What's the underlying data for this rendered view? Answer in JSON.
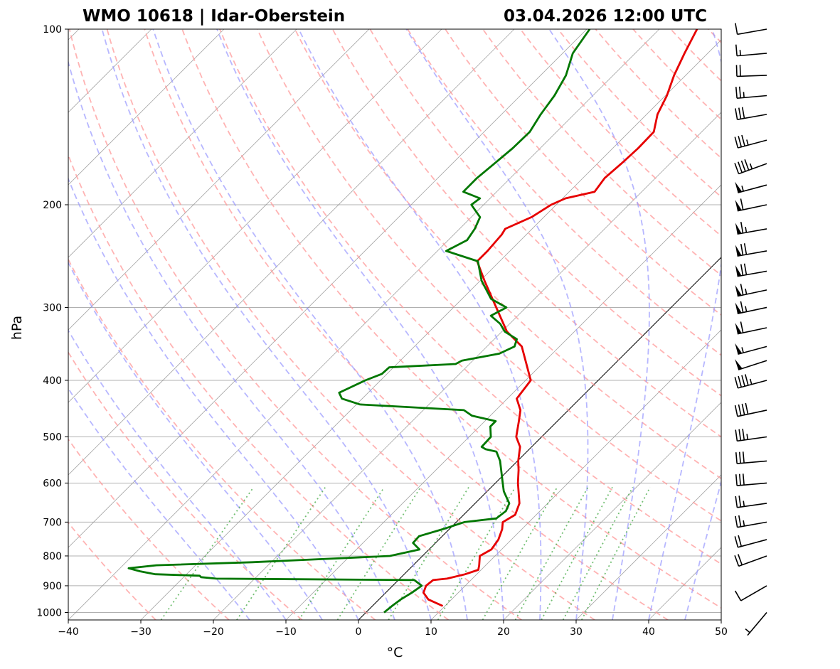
{
  "header": {
    "station": "WMO 10618 | Idar-Oberstein",
    "datetime": "03.04.2026 12:00 UTC"
  },
  "chart_data": {
    "type": "skew-t",
    "title": "WMO 10618 | Idar-Oberstein",
    "subtitle": "03.04.2026 12:00 UTC",
    "xlabel": "°C",
    "ylabel": "hPa",
    "xlim": [
      -40,
      50
    ],
    "ylim": [
      1030,
      100
    ],
    "y_scale": "log",
    "x_ticks": [
      -40,
      -30,
      -20,
      -10,
      0,
      10,
      20,
      30,
      40,
      50
    ],
    "x_tick_labels": [
      "−40",
      "−30",
      "−20",
      "−10",
      "0",
      "10",
      "20",
      "30",
      "40",
      "50"
    ],
    "y_ticks": [
      1000,
      900,
      800,
      700,
      600,
      500,
      400,
      300,
      200,
      100
    ],
    "y_tick_labels": [
      "1000",
      "900",
      "800",
      "700",
      "600",
      "500",
      "400",
      "300",
      "200",
      "100"
    ],
    "grid": true,
    "colors": {
      "temperature": "#e60000",
      "dewpoint": "#007700",
      "dry_adiabats": "#ff9999",
      "moist_adiabats": "#9999ff",
      "mixing_ratio": "#44aa44",
      "isotherms": "#888888",
      "zero_isotherm": "#000000",
      "gridlines": "#b0b0b0"
    },
    "series": [
      {
        "key": "temperature",
        "points": [
          {
            "p": 975,
            "t": 9.7
          },
          {
            "p": 950,
            "t": 6.8
          },
          {
            "p": 925,
            "t": 5.2
          },
          {
            "p": 900,
            "t": 4.6
          },
          {
            "p": 880,
            "t": 4.8
          },
          {
            "p": 875,
            "t": 6.5
          },
          {
            "p": 860,
            "t": 8.4
          },
          {
            "p": 845,
            "t": 9.6
          },
          {
            "p": 830,
            "t": 9.1
          },
          {
            "p": 800,
            "t": 7.9
          },
          {
            "p": 780,
            "t": 8.6
          },
          {
            "p": 750,
            "t": 8.2
          },
          {
            "p": 720,
            "t": 7.3
          },
          {
            "p": 700,
            "t": 6.4
          },
          {
            "p": 680,
            "t": 7.1
          },
          {
            "p": 650,
            "t": 6.1
          },
          {
            "p": 600,
            "t": 3.1
          },
          {
            "p": 570,
            "t": 1.4
          },
          {
            "p": 550,
            "t": 0.1
          },
          {
            "p": 520,
            "t": -1.6
          },
          {
            "p": 500,
            "t": -3.5
          },
          {
            "p": 470,
            "t": -5.3
          },
          {
            "p": 450,
            "t": -6.6
          },
          {
            "p": 430,
            "t": -8.7
          },
          {
            "p": 420,
            "t": -8.9
          },
          {
            "p": 400,
            "t": -9.3
          },
          {
            "p": 350,
            "t": -15.2
          },
          {
            "p": 330,
            "t": -19.3
          },
          {
            "p": 300,
            "t": -24.1
          },
          {
            "p": 270,
            "t": -29.4
          },
          {
            "p": 250,
            "t": -33.1
          },
          {
            "p": 240,
            "t": -33.1
          },
          {
            "p": 225,
            "t": -33.4
          },
          {
            "p": 220,
            "t": -33.7
          },
          {
            "p": 210,
            "t": -31.7
          },
          {
            "p": 200,
            "t": -30.7
          },
          {
            "p": 195,
            "t": -29.6
          },
          {
            "p": 190,
            "t": -26.5
          },
          {
            "p": 180,
            "t": -27.0
          },
          {
            "p": 170,
            "t": -26.7
          },
          {
            "p": 160,
            "t": -26.5
          },
          {
            "p": 150,
            "t": -26.6
          },
          {
            "p": 140,
            "t": -28.5
          },
          {
            "p": 130,
            "t": -29.8
          },
          {
            "p": 120,
            "t": -31.6
          },
          {
            "p": 110,
            "t": -33.2
          },
          {
            "p": 100,
            "t": -34.8
          }
        ]
      },
      {
        "key": "dewpoint",
        "points": [
          {
            "p": 1000,
            "t": 2.5
          },
          {
            "p": 975,
            "t": 2.7
          },
          {
            "p": 950,
            "t": 3.0
          },
          {
            "p": 925,
            "t": 3.6
          },
          {
            "p": 900,
            "t": 4.0
          },
          {
            "p": 880,
            "t": 2.2
          },
          {
            "p": 875,
            "t": -25.3
          },
          {
            "p": 870,
            "t": -27.6
          },
          {
            "p": 865,
            "t": -28.0
          },
          {
            "p": 860,
            "t": -34.3
          },
          {
            "p": 850,
            "t": -36.8
          },
          {
            "p": 840,
            "t": -38.8
          },
          {
            "p": 830,
            "t": -35.4
          },
          {
            "p": 820,
            "t": -22.6
          },
          {
            "p": 810,
            "t": -13.4
          },
          {
            "p": 800,
            "t": -4.5
          },
          {
            "p": 780,
            "t": -1.3
          },
          {
            "p": 760,
            "t": -3.1
          },
          {
            "p": 740,
            "t": -3.2
          },
          {
            "p": 720,
            "t": -0.9
          },
          {
            "p": 700,
            "t": 1.1
          },
          {
            "p": 690,
            "t": 5.0
          },
          {
            "p": 670,
            "t": 5.3
          },
          {
            "p": 650,
            "t": 4.7
          },
          {
            "p": 620,
            "t": 2.3
          },
          {
            "p": 600,
            "t": 1.0
          },
          {
            "p": 550,
            "t": -2.4
          },
          {
            "p": 530,
            "t": -4.2
          },
          {
            "p": 525,
            "t": -6.0
          },
          {
            "p": 520,
            "t": -6.9
          },
          {
            "p": 500,
            "t": -7.0
          },
          {
            "p": 480,
            "t": -8.5
          },
          {
            "p": 470,
            "t": -8.5
          },
          {
            "p": 460,
            "t": -12.5
          },
          {
            "p": 450,
            "t": -14.4
          },
          {
            "p": 440,
            "t": -29.5
          },
          {
            "p": 430,
            "t": -32.8
          },
          {
            "p": 420,
            "t": -34.0
          },
          {
            "p": 400,
            "t": -32.1
          },
          {
            "p": 390,
            "t": -30.7
          },
          {
            "p": 380,
            "t": -30.6
          },
          {
            "p": 375,
            "t": -21.9
          },
          {
            "p": 370,
            "t": -21.5
          },
          {
            "p": 360,
            "t": -17.3
          },
          {
            "p": 350,
            "t": -16.2
          },
          {
            "p": 340,
            "t": -16.9
          },
          {
            "p": 330,
            "t": -19.6
          },
          {
            "p": 320,
            "t": -21.3
          },
          {
            "p": 310,
            "t": -23.7
          },
          {
            "p": 300,
            "t": -22.7
          },
          {
            "p": 290,
            "t": -26.0
          },
          {
            "p": 270,
            "t": -29.8
          },
          {
            "p": 250,
            "t": -33.0
          },
          {
            "p": 240,
            "t": -38.8
          },
          {
            "p": 230,
            "t": -37.4
          },
          {
            "p": 220,
            "t": -37.9
          },
          {
            "p": 210,
            "t": -38.8
          },
          {
            "p": 200,
            "t": -41.7
          },
          {
            "p": 195,
            "t": -41.4
          },
          {
            "p": 190,
            "t": -44.6
          },
          {
            "p": 180,
            "t": -44.6
          },
          {
            "p": 170,
            "t": -44.2
          },
          {
            "p": 160,
            "t": -43.8
          },
          {
            "p": 150,
            "t": -43.7
          },
          {
            "p": 140,
            "t": -44.6
          },
          {
            "p": 130,
            "t": -45.3
          },
          {
            "p": 120,
            "t": -46.5
          },
          {
            "p": 110,
            "t": -48.6
          },
          {
            "p": 100,
            "t": -49.6
          }
        ]
      }
    ],
    "wind_barbs": [
      {
        "p": 1000,
        "speed_kt": 5,
        "dir_deg": 220
      },
      {
        "p": 900,
        "speed_kt": 10,
        "dir_deg": 240
      },
      {
        "p": 800,
        "speed_kt": 20,
        "dir_deg": 250
      },
      {
        "p": 750,
        "speed_kt": 20,
        "dir_deg": 255
      },
      {
        "p": 700,
        "speed_kt": 25,
        "dir_deg": 260
      },
      {
        "p": 650,
        "speed_kt": 25,
        "dir_deg": 262
      },
      {
        "p": 600,
        "speed_kt": 30,
        "dir_deg": 265
      },
      {
        "p": 550,
        "speed_kt": 30,
        "dir_deg": 265
      },
      {
        "p": 500,
        "speed_kt": 35,
        "dir_deg": 262
      },
      {
        "p": 450,
        "speed_kt": 40,
        "dir_deg": 258
      },
      {
        "p": 400,
        "speed_kt": 45,
        "dir_deg": 255
      },
      {
        "p": 370,
        "speed_kt": 50,
        "dir_deg": 252
      },
      {
        "p": 350,
        "speed_kt": 55,
        "dir_deg": 255
      },
      {
        "p": 325,
        "speed_kt": 60,
        "dir_deg": 258
      },
      {
        "p": 300,
        "speed_kt": 65,
        "dir_deg": 258
      },
      {
        "p": 280,
        "speed_kt": 65,
        "dir_deg": 258
      },
      {
        "p": 260,
        "speed_kt": 70,
        "dir_deg": 260
      },
      {
        "p": 240,
        "speed_kt": 70,
        "dir_deg": 260
      },
      {
        "p": 220,
        "speed_kt": 65,
        "dir_deg": 260
      },
      {
        "p": 200,
        "speed_kt": 60,
        "dir_deg": 258
      },
      {
        "p": 185,
        "speed_kt": 55,
        "dir_deg": 255
      },
      {
        "p": 170,
        "speed_kt": 45,
        "dir_deg": 250
      },
      {
        "p": 155,
        "speed_kt": 35,
        "dir_deg": 255
      },
      {
        "p": 140,
        "speed_kt": 30,
        "dir_deg": 260
      },
      {
        "p": 130,
        "speed_kt": 25,
        "dir_deg": 265
      },
      {
        "p": 120,
        "speed_kt": 20,
        "dir_deg": 268
      },
      {
        "p": 110,
        "speed_kt": 15,
        "dir_deg": 265
      },
      {
        "p": 100,
        "speed_kt": 10,
        "dir_deg": 260
      }
    ]
  }
}
